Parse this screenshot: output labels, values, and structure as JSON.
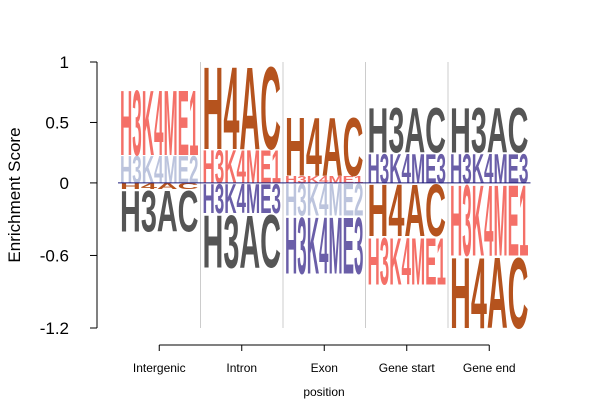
{
  "chart_data": {
    "type": "sequence-logo",
    "ylabel": "Enrichment Score",
    "xlabel": "position",
    "yticks": [
      "1",
      "0.5",
      "0",
      "-0.6",
      "-1.2"
    ],
    "ytick_values": [
      1,
      0.5,
      0,
      -0.6,
      -1.2
    ],
    "ylim": [
      -1.2,
      1
    ],
    "colors": {
      "H4AC": "#b5531e",
      "H3AC": "#555555",
      "H3K4ME1": "#f47068",
      "H3K4ME2": "#bcc4dd",
      "H3K4ME3": "#6a5ea8"
    },
    "categories": [
      "Intergenic",
      "Intron",
      "Exon",
      "Gene start",
      "Gene end"
    ],
    "stacks": [
      {
        "category": "Intergenic",
        "positive": [
          {
            "mark": "H3K4ME2",
            "value": 0.23
          },
          {
            "mark": "H3K4ME1",
            "value": 0.55
          }
        ],
        "negative": [
          {
            "mark": "H4AC",
            "value": 0.05
          },
          {
            "mark": "H3AC",
            "value": 0.35
          }
        ]
      },
      {
        "category": "Intron",
        "positive": [
          {
            "mark": "H3K4ME1",
            "value": 0.28
          },
          {
            "mark": "H4AC",
            "value": 0.7
          }
        ],
        "negative": [
          {
            "mark": "H3K4ME3",
            "value": 0.25
          },
          {
            "mark": "H3AC",
            "value": 0.45
          }
        ]
      },
      {
        "category": "Exon",
        "positive": [
          {
            "mark": "H3K4ME1",
            "value": 0.06
          },
          {
            "mark": "H4AC",
            "value": 0.5
          }
        ],
        "negative": [
          {
            "mark": "H3K4ME2",
            "value": 0.27
          },
          {
            "mark": "H3K4ME3",
            "value": 0.48
          }
        ]
      },
      {
        "category": "Gene start",
        "positive": [
          {
            "mark": "H3K4ME3",
            "value": 0.25
          },
          {
            "mark": "H3AC",
            "value": 0.38
          }
        ],
        "negative": [
          {
            "mark": "H4AC",
            "value": 0.44
          },
          {
            "mark": "H3K4ME1",
            "value": 0.4
          }
        ]
      },
      {
        "category": "Gene end",
        "positive": [
          {
            "mark": "H3K4ME3",
            "value": 0.25
          },
          {
            "mark": "H3AC",
            "value": 0.38
          }
        ],
        "negative": [
          {
            "mark": "H3K4ME1",
            "value": 0.6
          },
          {
            "mark": "H4AC",
            "value": 0.6
          }
        ]
      }
    ]
  }
}
